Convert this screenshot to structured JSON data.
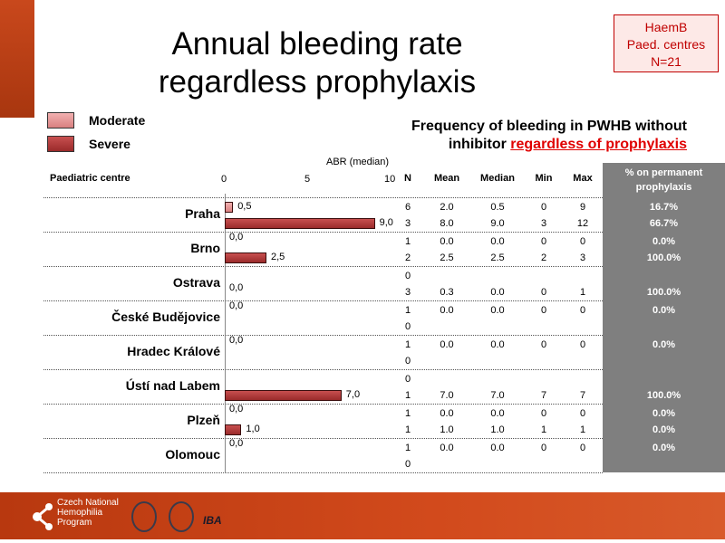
{
  "title_lines": [
    "Annual bleeding rate",
    "regardless prophylaxis"
  ],
  "badge": [
    "HaemB",
    "Paed. centres",
    "N=21"
  ],
  "legend": {
    "moderate": "Moderate",
    "severe": "Severe"
  },
  "frequency_title": {
    "line1": "Frequency of bleeding in PWHB without",
    "line2_prefix": "inhibitor ",
    "line2_highlight": "regardless of prophylaxis"
  },
  "axis": {
    "label": "ABR (median)",
    "ticks": [
      "0",
      "5",
      "10"
    ],
    "max": 10
  },
  "headers": {
    "centre": "Paediatric centre",
    "n": "N",
    "mean": "Mean",
    "median": "Median",
    "min": "Min",
    "max": "Max",
    "pct": "% on permanent prophylaxis"
  },
  "colors": {
    "moderate": "#e29a9a",
    "severe": "#b03a3a",
    "pct_column": "#7f7f7f",
    "footer": "#c9461a"
  },
  "rows": [
    {
      "centre": "Praha",
      "mod": {
        "abr": 0.5,
        "label": "0,5",
        "n": "6",
        "mean": "2.0",
        "median": "0.5",
        "min": "0",
        "max": "9",
        "pct": "16.7%"
      },
      "sev": {
        "abr": 9.0,
        "label": "9,0",
        "n": "3",
        "mean": "8.0",
        "median": "9.0",
        "min": "3",
        "max": "12",
        "pct": "66.7%"
      }
    },
    {
      "centre": "Brno",
      "mod": {
        "abr": 0,
        "label": "0,0",
        "n": "1",
        "mean": "0.0",
        "median": "0.0",
        "min": "0",
        "max": "0",
        "pct": "0.0%"
      },
      "sev": {
        "abr": 2.5,
        "label": "2,5",
        "n": "2",
        "mean": "2.5",
        "median": "2.5",
        "min": "2",
        "max": "3",
        "pct": "100.0%"
      }
    },
    {
      "centre": "Ostrava",
      "mod": {
        "abr": null,
        "label": "",
        "n": "0",
        "mean": "",
        "median": "",
        "min": "",
        "max": "",
        "pct": ""
      },
      "sev": {
        "abr": 0,
        "label": "0,0",
        "n": "3",
        "mean": "0.3",
        "median": "0.0",
        "min": "0",
        "max": "1",
        "pct": "100.0%"
      }
    },
    {
      "centre": "České Budějovice",
      "mod": {
        "abr": 0,
        "label": "0,0",
        "n": "1",
        "mean": "0.0",
        "median": "0.0",
        "min": "0",
        "max": "0",
        "pct": "0.0%"
      },
      "sev": {
        "abr": null,
        "label": "",
        "n": "0",
        "mean": "",
        "median": "",
        "min": "",
        "max": "",
        "pct": ""
      }
    },
    {
      "centre": "Hradec Králové",
      "mod": {
        "abr": 0,
        "label": "0,0",
        "n": "1",
        "mean": "0.0",
        "median": "0.0",
        "min": "0",
        "max": "0",
        "pct": "0.0%"
      },
      "sev": {
        "abr": null,
        "label": "",
        "n": "0",
        "mean": "",
        "median": "",
        "min": "",
        "max": "",
        "pct": ""
      }
    },
    {
      "centre": "Ústí nad Labem",
      "mod": {
        "abr": null,
        "label": "",
        "n": "0",
        "mean": "",
        "median": "",
        "min": "",
        "max": "",
        "pct": ""
      },
      "sev": {
        "abr": 7.0,
        "label": "7,0",
        "n": "1",
        "mean": "7.0",
        "median": "7.0",
        "min": "7",
        "max": "7",
        "pct": "100.0%"
      }
    },
    {
      "centre": "Plzeň",
      "mod": {
        "abr": 0,
        "label": "0,0",
        "n": "1",
        "mean": "0.0",
        "median": "0.0",
        "min": "0",
        "max": "0",
        "pct": "0.0%"
      },
      "sev": {
        "abr": 1.0,
        "label": "1,0",
        "n": "1",
        "mean": "1.0",
        "median": "1.0",
        "min": "1",
        "max": "1",
        "pct": "0.0%"
      }
    },
    {
      "centre": "Olomouc",
      "mod": {
        "abr": 0,
        "label": "0,0",
        "n": "1",
        "mean": "0.0",
        "median": "0.0",
        "min": "0",
        "max": "0",
        "pct": "0.0%"
      },
      "sev": {
        "abr": null,
        "label": "",
        "n": "0",
        "mean": "",
        "median": "",
        "min": "",
        "max": "",
        "pct": ""
      }
    }
  ],
  "footer": {
    "logo_text": [
      "Czech National",
      "Hemophilia",
      "Program"
    ],
    "iba": "IBA"
  }
}
